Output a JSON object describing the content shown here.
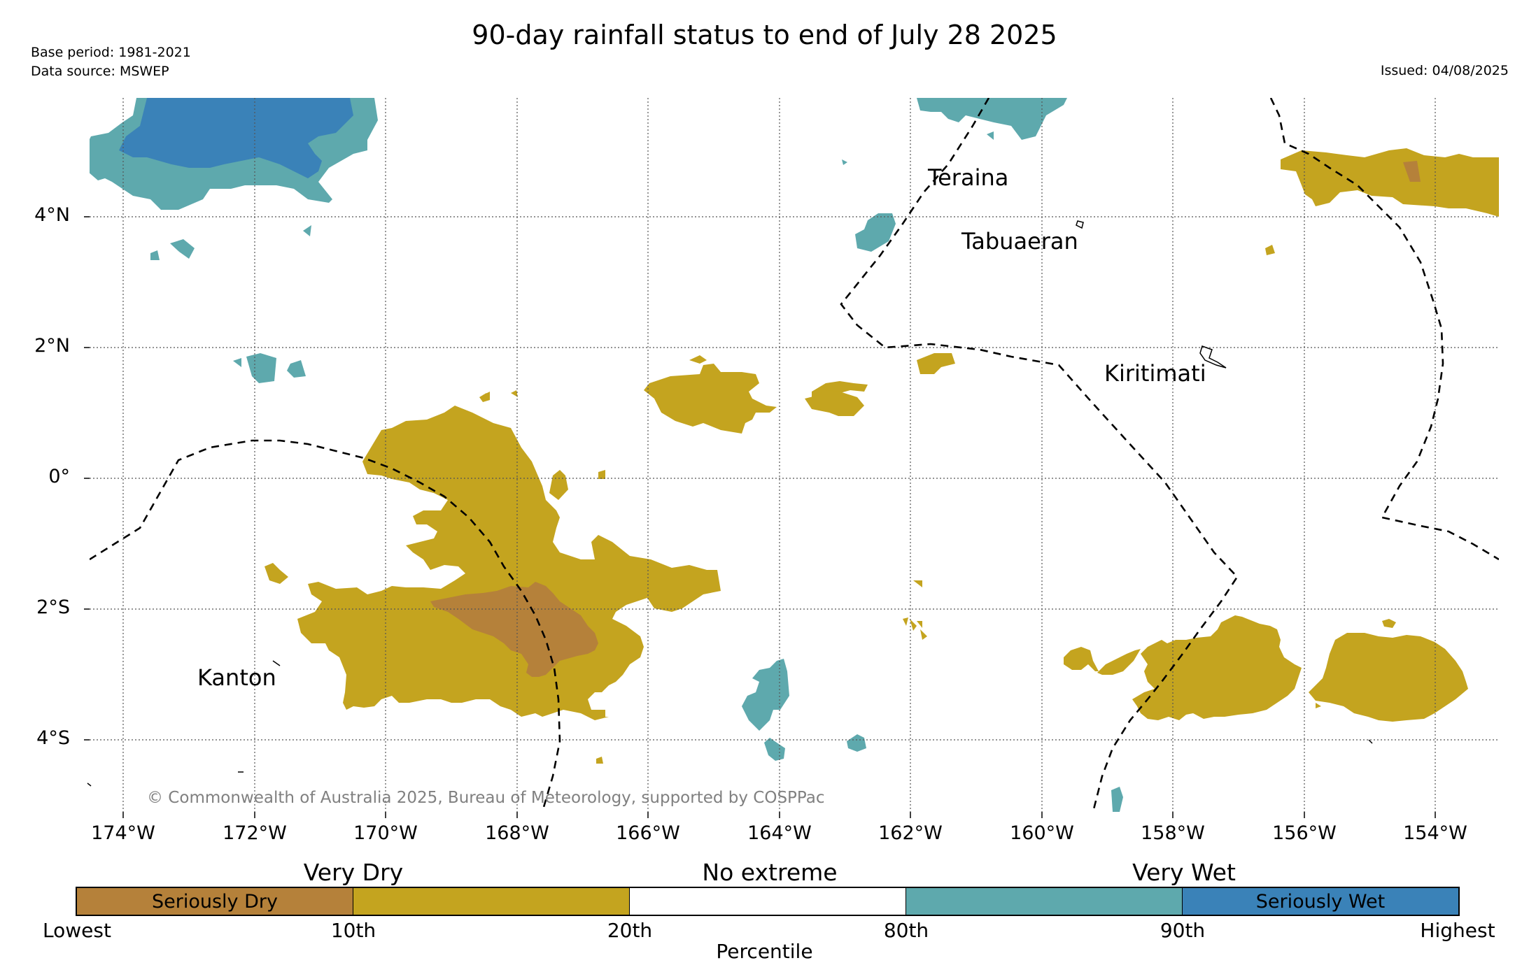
{
  "title": "90-day rainfall status to end of July 28 2025",
  "meta": {
    "base_period": "Base period: 1981-2021",
    "data_source": "Data source: MSWEP",
    "issued": "Issued: 04/08/2025"
  },
  "map": {
    "lat_labels": [
      "4°N",
      "2°N",
      "0°",
      "2°S",
      "4°S"
    ],
    "lon_labels": [
      "174°W",
      "172°W",
      "170°W",
      "168°W",
      "166°W",
      "164°W",
      "162°W",
      "160°W",
      "158°W",
      "156°W",
      "154°W"
    ],
    "places": [
      "Teraina",
      "Tabuaeran",
      "Kiritimati",
      "Kanton"
    ],
    "copyright": "© Commonwealth of Australia 2025, Bureau of Meteorology, supported by COSPPac",
    "colors": {
      "seriously_dry": "#b5813a",
      "very_dry": "#c4a41f",
      "no_extreme": "#ffffff",
      "very_wet": "#5ea9ad",
      "seriously_wet": "#3a82b8"
    }
  },
  "legend": {
    "categories": [
      "Very Dry",
      "No extreme",
      "Very Wet"
    ],
    "segments": [
      "Seriously Dry",
      "",
      "",
      "",
      "Seriously Wet"
    ],
    "ticks": [
      "Lowest",
      "10th",
      "20th",
      "80th",
      "90th",
      "Highest"
    ],
    "axis_label": "Percentile"
  }
}
